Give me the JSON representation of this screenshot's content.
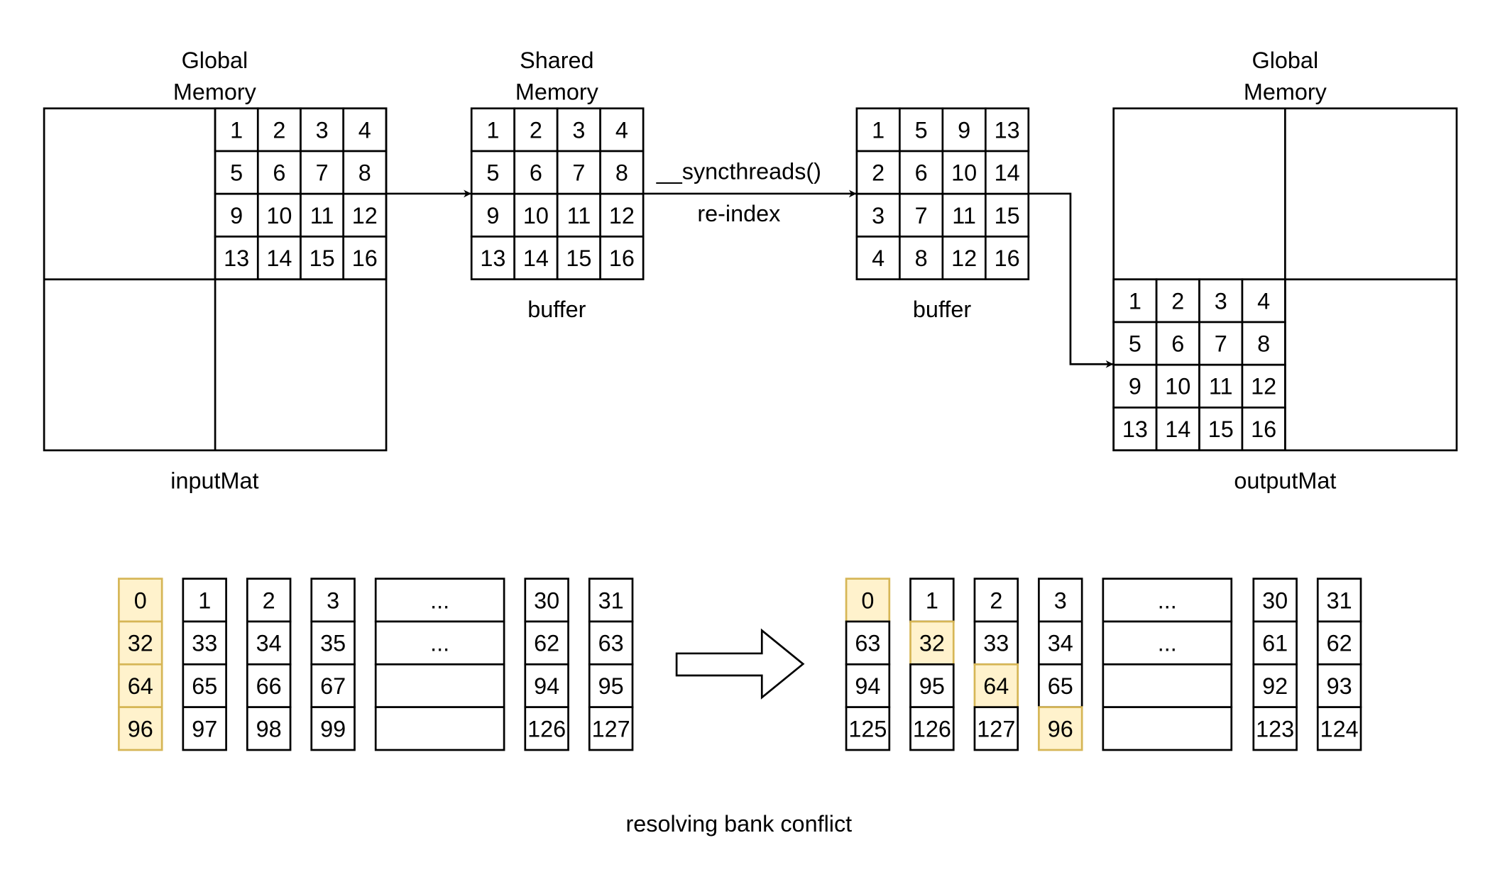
{
  "labels": {
    "input_title_line1": "Global",
    "input_title_line2": "Memory",
    "input_name": "inputMat",
    "shared_title_line1": "Shared",
    "shared_title_line2": "Memory",
    "buffer1_name": "buffer",
    "sync_label": "__syncthreads()",
    "reindex_label": "re-index",
    "buffer2_name": "buffer",
    "output_title_line1": "Global",
    "output_title_line2": "Memory",
    "output_name": "outputMat",
    "caption": "resolving bank conflict"
  },
  "tiles": {
    "input_tile": [
      [
        "1",
        "2",
        "3",
        "4"
      ],
      [
        "5",
        "6",
        "7",
        "8"
      ],
      [
        "9",
        "10",
        "11",
        "12"
      ],
      [
        "13",
        "14",
        "15",
        "16"
      ]
    ],
    "shared_buffer": [
      [
        "1",
        "2",
        "3",
        "4"
      ],
      [
        "5",
        "6",
        "7",
        "8"
      ],
      [
        "9",
        "10",
        "11",
        "12"
      ],
      [
        "13",
        "14",
        "15",
        "16"
      ]
    ],
    "transposed_buffer": [
      [
        "1",
        "5",
        "9",
        "13"
      ],
      [
        "2",
        "6",
        "10",
        "14"
      ],
      [
        "3",
        "7",
        "11",
        "15"
      ],
      [
        "4",
        "8",
        "12",
        "16"
      ]
    ],
    "output_tile": [
      [
        "1",
        "2",
        "3",
        "4"
      ],
      [
        "5",
        "6",
        "7",
        "8"
      ],
      [
        "9",
        "10",
        "11",
        "12"
      ],
      [
        "13",
        "14",
        "15",
        "16"
      ]
    ]
  },
  "banks": {
    "before": [
      {
        "cells": [
          "0",
          "32",
          "64",
          "96"
        ],
        "highlight": [
          true,
          true,
          true,
          true
        ]
      },
      {
        "cells": [
          "1",
          "33",
          "65",
          "97"
        ],
        "highlight": [
          false,
          false,
          false,
          false
        ]
      },
      {
        "cells": [
          "2",
          "34",
          "66",
          "98"
        ],
        "highlight": [
          false,
          false,
          false,
          false
        ]
      },
      {
        "cells": [
          "3",
          "35",
          "67",
          "99"
        ],
        "highlight": [
          false,
          false,
          false,
          false
        ]
      },
      {
        "cells": [
          "...",
          "...",
          "",
          ""
        ],
        "highlight": [
          false,
          false,
          false,
          false
        ],
        "wide": true
      },
      {
        "cells": [
          "30",
          "62",
          "94",
          "126"
        ],
        "highlight": [
          false,
          false,
          false,
          false
        ]
      },
      {
        "cells": [
          "31",
          "63",
          "95",
          "127"
        ],
        "highlight": [
          false,
          false,
          false,
          false
        ]
      }
    ],
    "after": [
      {
        "cells": [
          "0",
          "63",
          "94",
          "125"
        ],
        "highlight": [
          true,
          false,
          false,
          false
        ]
      },
      {
        "cells": [
          "1",
          "32",
          "95",
          "126"
        ],
        "highlight": [
          false,
          true,
          false,
          false
        ]
      },
      {
        "cells": [
          "2",
          "33",
          "64",
          "127"
        ],
        "highlight": [
          false,
          false,
          true,
          false
        ]
      },
      {
        "cells": [
          "3",
          "34",
          "65",
          "96"
        ],
        "highlight": [
          false,
          false,
          false,
          true
        ]
      },
      {
        "cells": [
          "...",
          "...",
          "",
          ""
        ],
        "highlight": [
          false,
          false,
          false,
          false
        ],
        "wide": true
      },
      {
        "cells": [
          "30",
          "61",
          "92",
          "123"
        ],
        "highlight": [
          false,
          false,
          false,
          false
        ]
      },
      {
        "cells": [
          "31",
          "62",
          "93",
          "124"
        ],
        "highlight": [
          false,
          false,
          false,
          false
        ]
      }
    ]
  },
  "colors": {
    "stroke": "#000000",
    "highlight_fill": "#fff2cc",
    "highlight_stroke": "#d6b656"
  }
}
